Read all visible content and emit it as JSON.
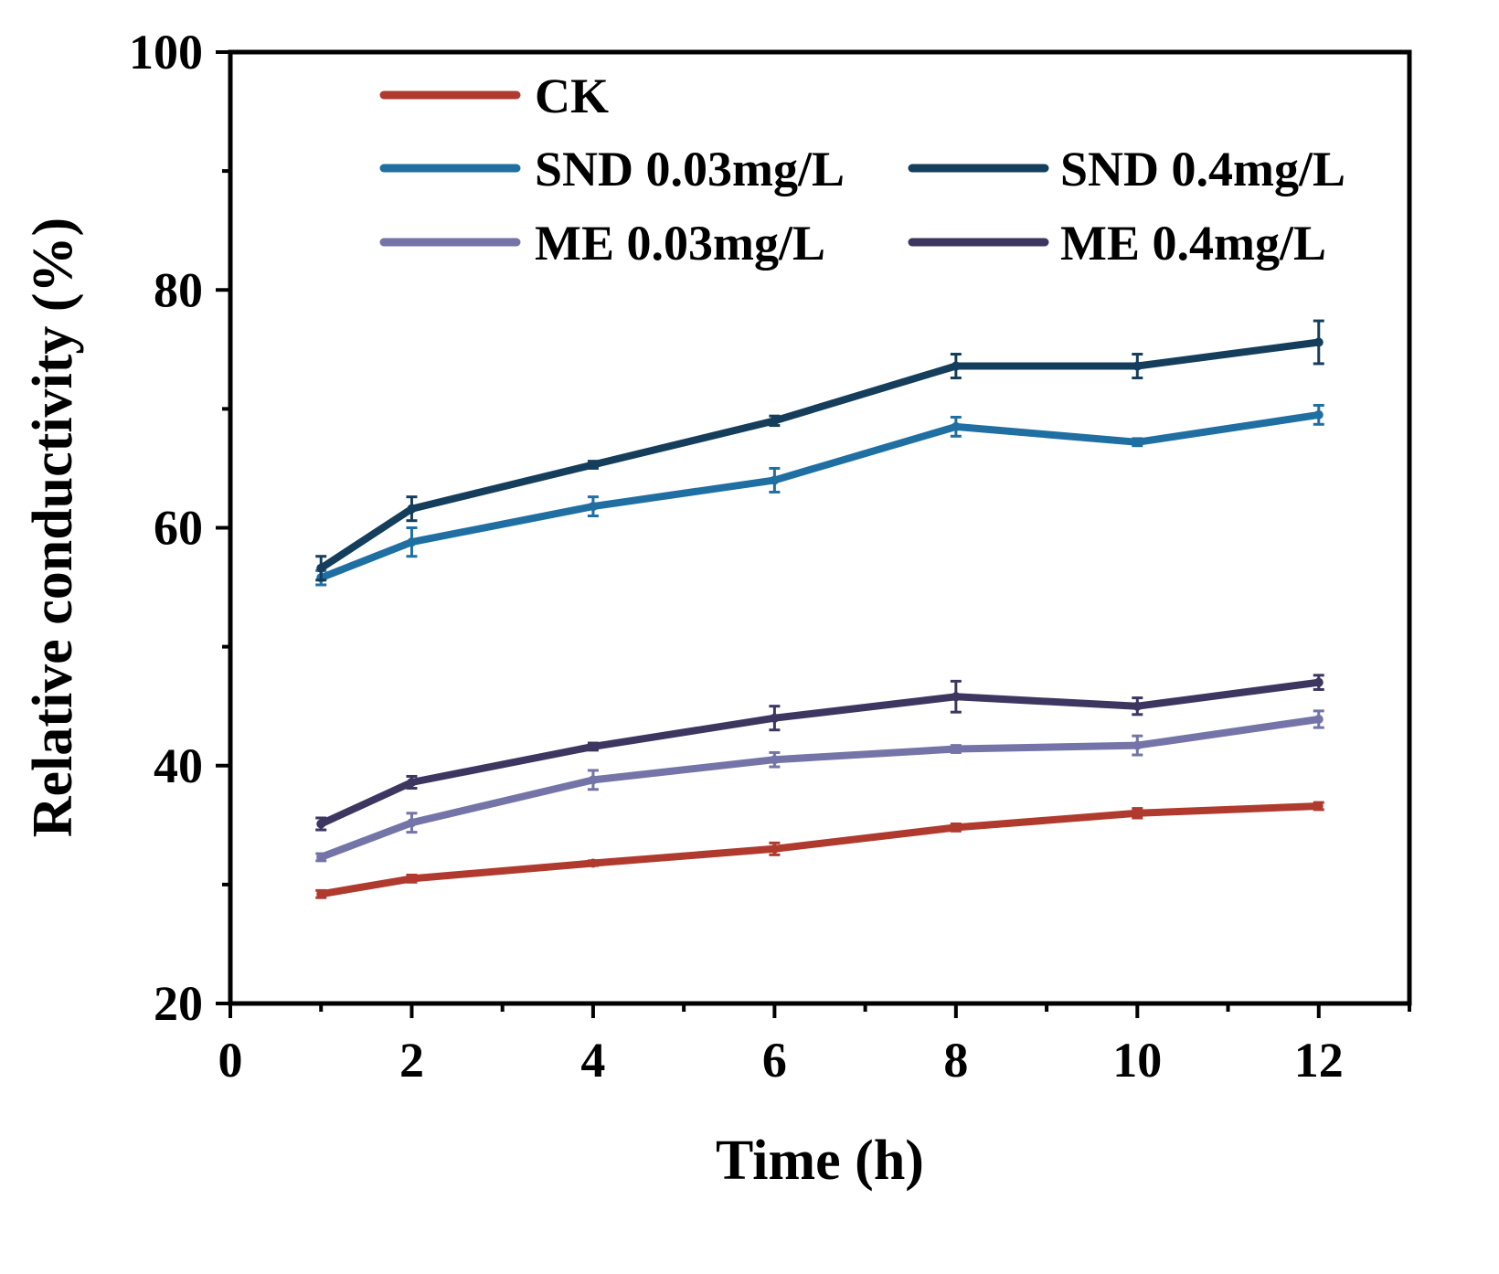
{
  "chart_data": {
    "type": "line",
    "xlabel": "Time (h)",
    "ylabel": "Relative conductivity (%)",
    "xlim": [
      0,
      13
    ],
    "ylim": [
      20,
      100
    ],
    "xticks": [
      0,
      2,
      4,
      6,
      8,
      10,
      12
    ],
    "xtick_labels": [
      "0",
      "2",
      "4",
      "6",
      "8",
      "10",
      "12"
    ],
    "yticks": [
      20,
      40,
      60,
      80,
      100
    ],
    "ytick_labels": [
      "20",
      "40",
      "60",
      "80",
      "100"
    ],
    "x": [
      1,
      2,
      4,
      6,
      8,
      10,
      12
    ],
    "legend_position": "top",
    "series": [
      {
        "name": "CK",
        "color": "#b03a2e",
        "values": [
          29.2,
          30.5,
          31.8,
          33.0,
          34.8,
          36.0,
          36.6
        ],
        "errors": [
          0.3,
          0.3,
          0.2,
          0.5,
          0.3,
          0.4,
          0.3
        ]
      },
      {
        "name": "SND 0.03mg/L",
        "color": "#1f6fa3",
        "values": [
          55.8,
          58.8,
          61.8,
          64.0,
          68.5,
          67.2,
          69.5
        ],
        "errors": [
          0.6,
          1.2,
          0.8,
          1.0,
          0.8,
          0.3,
          0.8
        ]
      },
      {
        "name": "SND 0.4mg/L",
        "color": "#143e5c",
        "values": [
          56.6,
          61.6,
          65.3,
          69.0,
          73.6,
          73.6,
          75.6
        ],
        "errors": [
          1.0,
          1.0,
          0.3,
          0.4,
          1.0,
          1.0,
          1.8
        ]
      },
      {
        "name": "ME 0.03mg/L",
        "color": "#7474a8",
        "values": [
          32.3,
          35.2,
          38.8,
          40.5,
          41.4,
          41.7,
          43.9
        ],
        "errors": [
          0.3,
          0.8,
          0.8,
          0.6,
          0.3,
          0.8,
          0.7
        ]
      },
      {
        "name": "ME 0.4mg/L",
        "color": "#3c3660",
        "values": [
          35.1,
          38.6,
          41.6,
          44.0,
          45.8,
          45.0,
          47.0
        ],
        "errors": [
          0.5,
          0.5,
          0.3,
          1.0,
          1.3,
          0.7,
          0.6
        ]
      }
    ]
  }
}
